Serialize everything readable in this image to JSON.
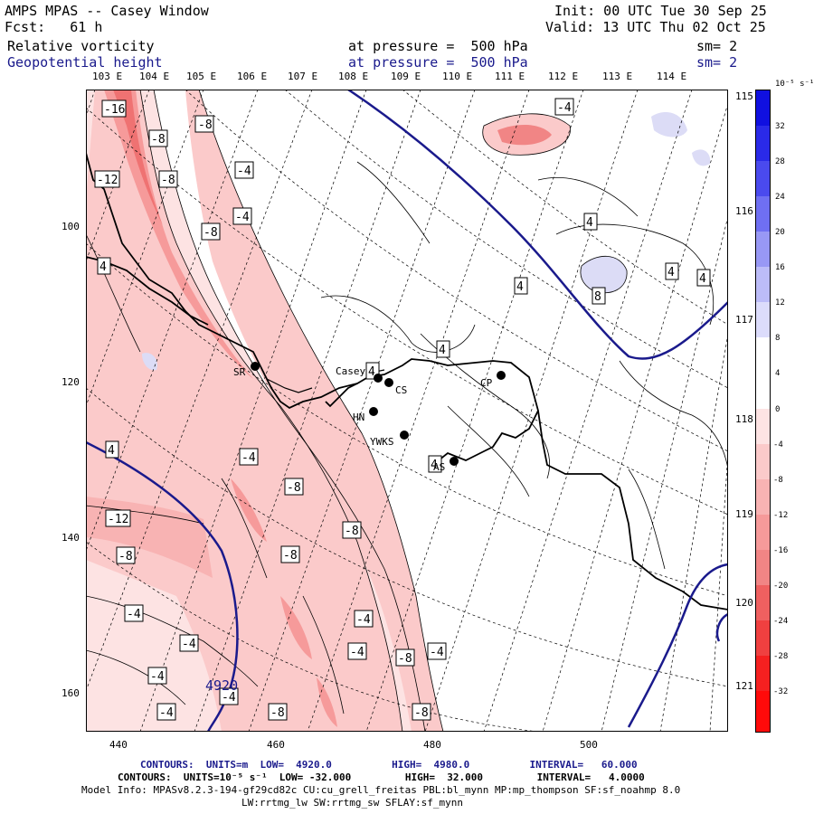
{
  "header": {
    "title": "AMPS MPAS -- Casey Window",
    "forecast": "Fcst:   61 h",
    "init": "Init: 00 UTC Tue 30 Sep 25",
    "valid": "Valid: 13 UTC Thu 02 Oct 25",
    "field1": {
      "name": "Relative vorticity",
      "pressure": "at pressure =  500 hPa",
      "sm": "sm= 2"
    },
    "field2": {
      "name": "Geopotential height",
      "pressure": "at pressure =  500 hPa",
      "sm": "sm= 2"
    }
  },
  "longitudes": [
    "103 E",
    "104 E",
    "105 E",
    "106 E",
    "107 E",
    "108 E",
    "109 E",
    "110 E",
    "111 E",
    "112 E",
    "113 E",
    "114 E"
  ],
  "right_lons": [
    "115 E",
    "116 E",
    "117 E",
    "118 E",
    "119 E",
    "120 E",
    "121 E"
  ],
  "x_ticks": [
    "440",
    "460",
    "480",
    "500"
  ],
  "y_ticks": [
    "100",
    "120",
    "140",
    "160"
  ],
  "stations": [
    {
      "id": "SR",
      "label": "SR"
    },
    {
      "id": "Casey",
      "label": "Casey"
    },
    {
      "id": "CS",
      "label": "CS"
    },
    {
      "id": "HN",
      "label": "HN"
    },
    {
      "id": "YWKS",
      "label": "YWKS"
    },
    {
      "id": "AS",
      "label": "AS"
    },
    {
      "id": "CP",
      "label": "CP"
    }
  ],
  "height_label": "4920",
  "colorbar": {
    "unit": "10⁻⁵ s⁻¹",
    "labels": [
      "32",
      "28",
      "24",
      "20",
      "16",
      "12",
      "8",
      "4",
      "0",
      "-4",
      "-8",
      "-12",
      "-16",
      "-20",
      "-24",
      "-28",
      "-32"
    ],
    "colors": {
      "positive": "#1a1ae6",
      "negative": "#ff1a1a",
      "neutral": "#ffffff"
    }
  },
  "footer": {
    "line1": "CONTOURS:  UNITS=m  LOW=  4920.0          HIGH=  4980.0          INTERVAL=   60.000",
    "line2": "CONTOURS:  UNITS=10⁻⁵ s⁻¹  LOW= -32.000         HIGH=  32.000         INTERVAL=   4.0000",
    "line3": "Model Info: MPASv8.2.3-194-gf29cd82c CU:cu_grell_freitas PBL:bl_mynn MP:mp_thompson SF:sf_noahmp 8.0",
    "line4": "LW:rrtmg_lw SW:rrtmg_sw SFLAY:sf_mynn"
  }
}
